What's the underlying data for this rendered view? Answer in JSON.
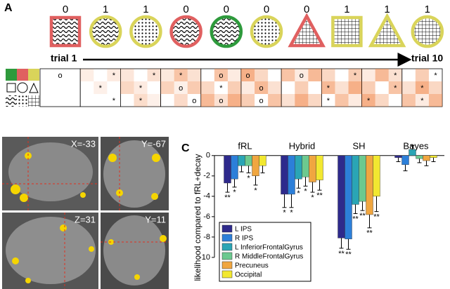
{
  "panel_a": {
    "label": "A",
    "outcomes": [
      0,
      1,
      1,
      0,
      0,
      0,
      0,
      1,
      1,
      1
    ],
    "start_label": "trial 1",
    "end_label": "trial 10",
    "matrices": [
      [
        [
          null,
          "o",
          null
        ],
        [
          null,
          null,
          null
        ],
        [
          null,
          null,
          null
        ]
      ],
      [
        [
          null,
          null,
          "*"
        ],
        [
          null,
          "*",
          null
        ],
        [
          null,
          null,
          "*"
        ]
      ],
      [
        [
          null,
          null,
          "*"
        ],
        [
          null,
          "*",
          null
        ],
        [
          null,
          "*",
          null
        ]
      ],
      [
        [
          null,
          "*",
          null
        ],
        [
          null,
          "o",
          null
        ],
        [
          null,
          null,
          "o"
        ]
      ],
      [
        [
          null,
          "o",
          null
        ],
        [
          null,
          "*",
          null
        ],
        [
          null,
          "o",
          null
        ]
      ],
      [
        [
          "o",
          null,
          null
        ],
        [
          null,
          "o",
          null
        ],
        [
          null,
          "o",
          null
        ]
      ],
      [
        [
          null,
          "o",
          null
        ],
        [
          null,
          null,
          null
        ],
        [
          null,
          null,
          null
        ]
      ],
      [
        [
          null,
          null,
          "*"
        ],
        [
          "*",
          null,
          null
        ],
        [
          "*",
          null,
          null
        ]
      ],
      [
        [
          null,
          null,
          "*"
        ],
        [
          null,
          null,
          "*"
        ],
        [
          "*",
          null,
          null
        ]
      ],
      [
        [
          null,
          null,
          "*"
        ],
        [
          null,
          "*",
          null
        ],
        [
          null,
          "*",
          null
        ]
      ]
    ]
  },
  "panel_b": {
    "label": "B",
    "slices": [
      "X=-33",
      "Y=-67",
      "Z=31",
      "Y=11"
    ]
  },
  "chart_data": {
    "type": "bar",
    "panel_label": "C",
    "y_label": "likelihood compared to fRL+decay",
    "categories": [
      "fRL",
      "Hybrid",
      "SH",
      "Bayes"
    ],
    "ylim": [
      -10.9,
      1.5
    ],
    "yticks": [
      -10,
      -8,
      -6,
      -4,
      -2,
      0
    ],
    "series": [
      {
        "name": "L IPS",
        "color": "#2e2a8c",
        "values": [
          -2.7,
          -3.8,
          -8.1,
          -0.2
        ],
        "errors": [
          0.9,
          1.3,
          1.0,
          0.4
        ],
        "significance": [
          "**",
          "*",
          "**",
          null
        ]
      },
      {
        "name": "R IPS",
        "color": "#2c7fd9",
        "values": [
          -2.3,
          -3.8,
          -8.2,
          -0.9
        ],
        "errors": [
          0.8,
          1.3,
          1.0,
          0.6
        ],
        "significance": [
          "*",
          "*",
          "**",
          null
        ]
      },
      {
        "name": "L InferiorFrontalGyrus",
        "color": "#2aa5b5",
        "values": [
          -1.0,
          -2.3,
          -4.8,
          0.6
        ],
        "errors": [
          0.6,
          0.9,
          0.9,
          0.4
        ],
        "significance": [
          null,
          "*",
          "**",
          null
        ]
      },
      {
        "name": "R MiddleFrontalGyrus",
        "color": "#6cc98f",
        "values": [
          -1.0,
          -2.1,
          -4.5,
          -0.3
        ],
        "errors": [
          0.7,
          0.9,
          0.9,
          0.4
        ],
        "significance": [
          "*",
          "*",
          "**",
          null
        ]
      },
      {
        "name": "Precuneus",
        "color": "#f0a640",
        "values": [
          -2.0,
          -2.6,
          -5.8,
          -0.5
        ],
        "errors": [
          0.9,
          1.0,
          1.3,
          0.5
        ],
        "significance": [
          "*",
          "*",
          "**",
          null
        ]
      },
      {
        "name": "Occipital",
        "color": "#f2e830",
        "values": [
          -1.0,
          -2.4,
          -4.0,
          -0.2
        ],
        "errors": [
          0.7,
          1.0,
          1.5,
          0.4
        ],
        "significance": [
          null,
          "**",
          "**",
          null
        ]
      }
    ]
  }
}
